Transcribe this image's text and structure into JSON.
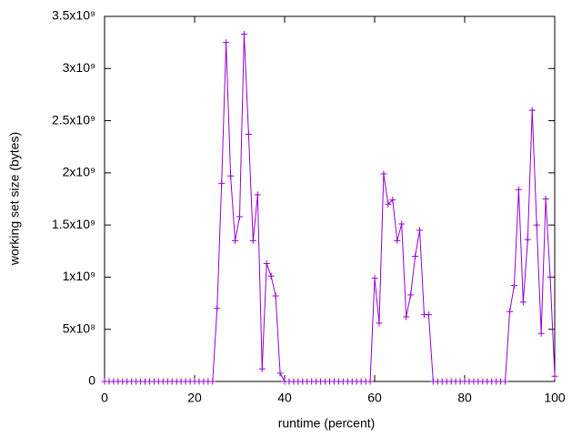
{
  "chart_data": {
    "type": "line",
    "xlabel": "runtime (percent)",
    "ylabel": "working set size (bytes)",
    "color": "#9400d3",
    "x": [
      0,
      1,
      2,
      3,
      4,
      5,
      6,
      7,
      8,
      9,
      10,
      11,
      12,
      13,
      14,
      15,
      16,
      17,
      18,
      19,
      20,
      21,
      22,
      23,
      24,
      25,
      26,
      27,
      28,
      29,
      30,
      31,
      32,
      33,
      34,
      35,
      36,
      37,
      38,
      39,
      40,
      41,
      42,
      43,
      44,
      45,
      46,
      47,
      48,
      49,
      50,
      51,
      52,
      53,
      54,
      55,
      56,
      57,
      58,
      59,
      60,
      61,
      62,
      63,
      64,
      65,
      66,
      67,
      68,
      69,
      70,
      71,
      72,
      73,
      74,
      75,
      76,
      77,
      78,
      79,
      80,
      81,
      82,
      83,
      84,
      85,
      86,
      87,
      88,
      89,
      90,
      91,
      92,
      93,
      94,
      95,
      96,
      97,
      98,
      99,
      100
    ],
    "values": [
      0,
      0,
      0,
      0,
      0,
      0,
      0,
      0,
      0,
      0,
      0,
      0,
      0,
      0,
      0,
      0,
      0,
      0,
      0,
      0,
      0,
      0,
      0,
      0,
      0,
      700000000,
      1900000000,
      3250000000,
      1970000000,
      1350000000,
      1580000000,
      3330000000,
      2370000000,
      1350000000,
      1790000000,
      120000000,
      1130000000,
      1010000000,
      820000000,
      80000000,
      0,
      0,
      0,
      0,
      0,
      0,
      0,
      0,
      0,
      0,
      0,
      0,
      0,
      0,
      0,
      0,
      0,
      0,
      0,
      0,
      990000000,
      560000000,
      1990000000,
      1700000000,
      1740000000,
      1350000000,
      1510000000,
      620000000,
      830000000,
      1200000000,
      1450000000,
      640000000,
      640000000,
      0,
      0,
      0,
      0,
      0,
      0,
      0,
      0,
      0,
      0,
      0,
      0,
      0,
      0,
      0,
      0,
      0,
      670000000,
      920000000,
      1840000000,
      760000000,
      1360000000,
      2600000000,
      1500000000,
      460000000,
      1750000000,
      1000000000,
      50000000
    ],
    "xlim": [
      0,
      100
    ],
    "xticks": [
      0,
      20,
      40,
      60,
      80,
      100
    ],
    "ylim": [
      0,
      3500000000
    ],
    "yticks": [
      0,
      {
        "value": 500000000,
        "label": "5x10⁸"
      },
      {
        "value": 1000000000,
        "label": "1x10⁹"
      },
      {
        "value": 1500000000,
        "label": "1.5x10⁹"
      },
      {
        "value": 2000000000,
        "label": "2x10⁹"
      },
      {
        "value": 2500000000,
        "label": "2.5x10⁹"
      },
      {
        "value": 3000000000,
        "label": "3x10⁹"
      },
      {
        "value": 3500000000,
        "label": "3.5x10⁹"
      }
    ]
  }
}
